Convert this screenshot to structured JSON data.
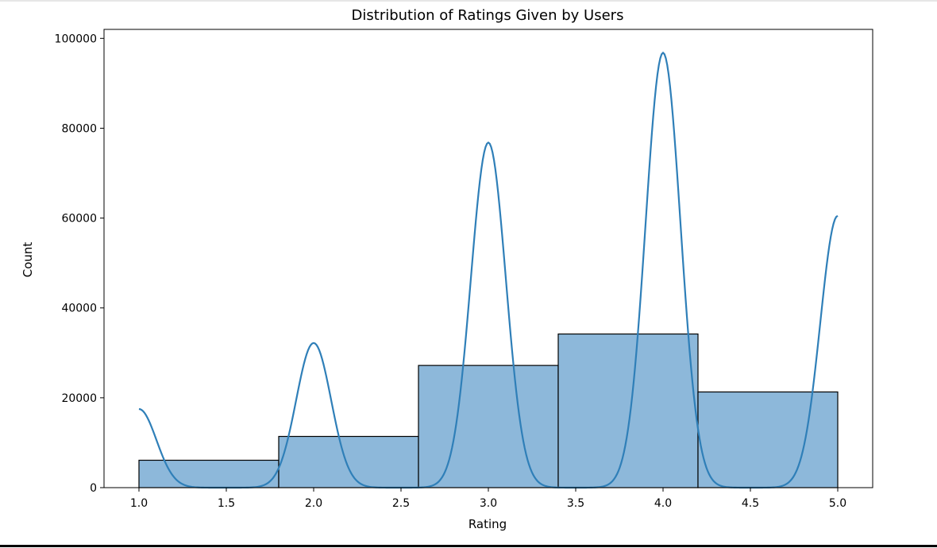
{
  "chart_data": {
    "type": "bar",
    "title": "Distribution of Ratings Given by Users",
    "xlabel": "Rating",
    "ylabel": "Count",
    "xlim": [
      0.8,
      5.2
    ],
    "ylim": [
      0,
      102000
    ],
    "xticks": [
      "1.0",
      "1.5",
      "2.0",
      "2.5",
      "3.0",
      "3.5",
      "4.0",
      "4.5",
      "5.0"
    ],
    "xtick_values": [
      1.0,
      1.5,
      2.0,
      2.5,
      3.0,
      3.5,
      4.0,
      4.5,
      5.0
    ],
    "yticks": [
      "0",
      "20000",
      "40000",
      "60000",
      "80000",
      "100000"
    ],
    "ytick_values": [
      0,
      20000,
      40000,
      60000,
      80000,
      100000
    ],
    "bins": [
      {
        "x0": 1.0,
        "x1": 1.8,
        "count": 6100
      },
      {
        "x0": 1.8,
        "x1": 2.6,
        "count": 11400
      },
      {
        "x0": 2.6,
        "x1": 3.4,
        "count": 27200
      },
      {
        "x0": 3.4,
        "x1": 4.2,
        "count": 34200
      },
      {
        "x0": 4.2,
        "x1": 5.0,
        "count": 21300
      }
    ],
    "kde": {
      "peaks": [
        {
          "x": 1.0,
          "y": 17500
        },
        {
          "x": 2.0,
          "y": 32200
        },
        {
          "x": 3.0,
          "y": 76800
        },
        {
          "x": 4.0,
          "y": 96800
        },
        {
          "x": 5.0,
          "y": 60500
        }
      ],
      "sigma": 0.1,
      "x_range": [
        1.0,
        5.0
      ]
    },
    "grid": false,
    "bar_color": "#8db8da",
    "bar_edge_color": "#000000",
    "kde_color": "#2f7fb8"
  }
}
